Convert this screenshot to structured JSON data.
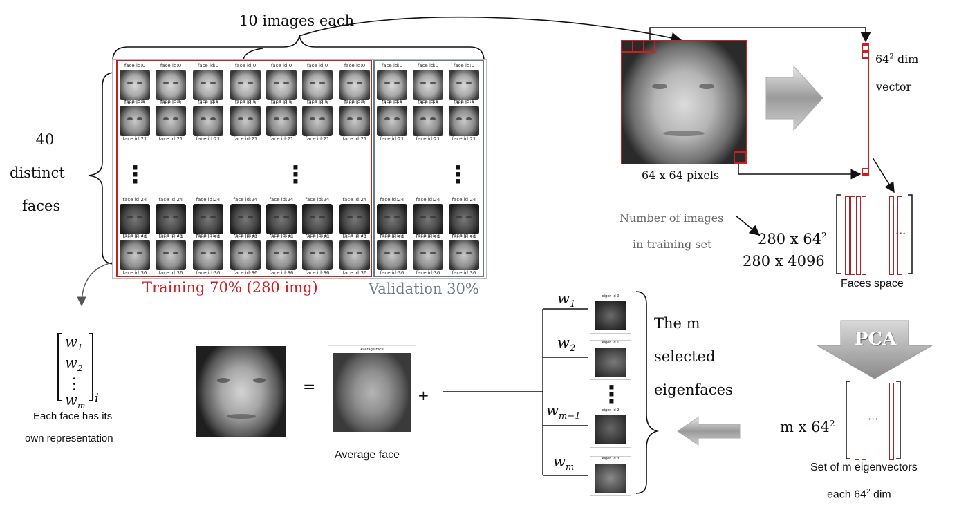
{
  "top": {
    "images_each": "10 images each"
  },
  "left": {
    "count": "40",
    "distinct": "distinct",
    "faces": "faces"
  },
  "grid": {
    "face_labels": [
      "face id:0",
      "face id:5",
      "face id:21",
      "face id:24",
      "face id:36"
    ],
    "training_label": "Training 70% (280 img)",
    "validation_label": "Validation 30%"
  },
  "pixel_block": {
    "size_label": "64 x 64 pixels",
    "vector_dim": "64",
    "vector_exp": "2",
    "vector_dim_suffix": " dim",
    "vector_word": "vector"
  },
  "faces_space": {
    "num_images_line1": "Number of images",
    "num_images_line2": "in training set",
    "matrix_line1_base": "280 x 64",
    "matrix_line1_exp": "2",
    "matrix_line2": "280 x 4096",
    "caption": "Faces space"
  },
  "pca": {
    "label": "PCA"
  },
  "eigvecs": {
    "dim_base": "m x 64",
    "dim_exp": "2",
    "caption_line1": "Set of m eigenvectors",
    "caption_line2_base": "each 64",
    "caption_line2_exp": "2",
    "caption_line2_suffix": " dim"
  },
  "eigenfaces": {
    "line1": "The m",
    "line2": "selected",
    "line3": "eigenfaces",
    "weights": [
      "w",
      "w",
      "w",
      "w"
    ],
    "weight_subs": [
      "1",
      "2",
      "m−1",
      "m"
    ],
    "thumb_titles": [
      "eigen id 0",
      "eigen id 1",
      "eigen id 2",
      "eigen id 3"
    ]
  },
  "representation": {
    "w1": "w",
    "w1_sub": "1",
    "w2": "w",
    "w2_sub": "2",
    "wm": "w",
    "wm_sub": "m",
    "outer_sub": "i",
    "caption_line1": "Each face has its",
    "caption_line2": "own representation"
  },
  "equation": {
    "equals": "=",
    "plus": "+",
    "avg_title": "Average Face",
    "avg_caption": "Average face"
  },
  "colors": {
    "training": "#cc1f1f",
    "validation": "#6b7b85",
    "accent_red": "#cc1f1f"
  }
}
